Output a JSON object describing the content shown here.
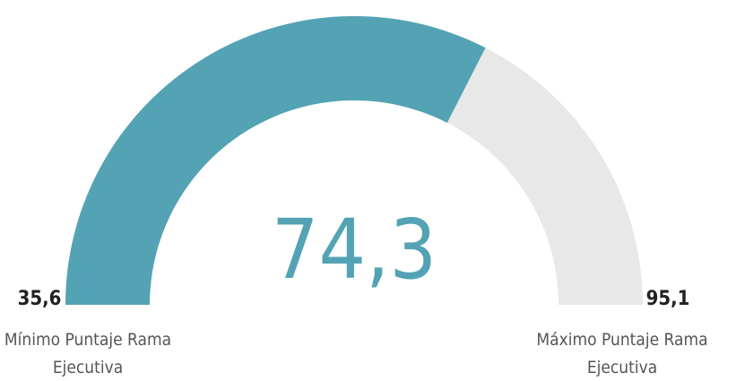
{
  "chart_data": {
    "type": "gauge",
    "values": [
      74.3
    ],
    "value_labels": [
      "74,3"
    ],
    "color": "#53a3b4",
    "track_color": "#e8e8e8",
    "ylim": [
      35.6,
      95.1
    ],
    "yticks": [
      {
        "value": 35.6,
        "label": "35,6"
      },
      {
        "value": 95.1,
        "label": "95,1"
      }
    ],
    "min_title": "Mínimo Puntaje Rama Ejecutiva",
    "max_title": "Máximo Puntaje Rama Ejecutiva"
  }
}
